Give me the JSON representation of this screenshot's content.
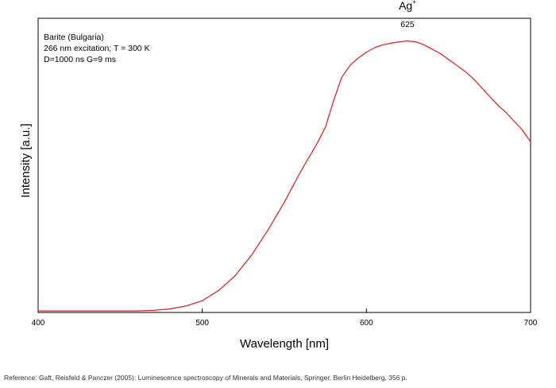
{
  "chart_data": {
    "type": "line",
    "title": "",
    "info_lines": [
      "Barite (Bulgaria)",
      "266 nm excitation; T = 300 K",
      "D=1000 ns G=9 ms"
    ],
    "xlabel": "Wavelength [nm]",
    "ylabel": "Intensity [a.u.]",
    "xlim": [
      400,
      700
    ],
    "ylim": [
      0,
      100
    ],
    "x_ticks": [
      400,
      500,
      600,
      700
    ],
    "y_ticks_visible": false,
    "grid": false,
    "legend": "none",
    "series": [
      {
        "color": "#e8191d",
        "x": [
          400,
          420,
          440,
          460,
          470,
          480,
          490,
          500,
          510,
          520,
          530,
          540,
          550,
          560,
          570,
          575,
          580,
          585,
          590,
          595,
          600,
          605,
          610,
          615,
          620,
          625,
          630,
          635,
          640,
          645,
          650,
          655,
          660,
          665,
          670,
          675,
          680,
          685,
          690,
          695,
          700
        ],
        "y": [
          0.5,
          0.5,
          0.5,
          0.5,
          0.7,
          1.2,
          2.2,
          4.0,
          7.5,
          12.5,
          19.5,
          28.0,
          37.5,
          48.0,
          57.5,
          63.0,
          72.0,
          80.0,
          84.0,
          86.5,
          88.5,
          90.0,
          91.0,
          91.5,
          92.0,
          92.3,
          92.0,
          91.0,
          89.5,
          88.0,
          86.0,
          84.0,
          82.0,
          79.5,
          76.5,
          73.5,
          70.5,
          68.0,
          65.0,
          62.0,
          58.0
        ]
      }
    ],
    "annotations": [
      {
        "label": "Ag",
        "superscript": "+",
        "x": 625,
        "y": 103
      },
      {
        "label": "625",
        "x": 625,
        "y": 97
      }
    ]
  },
  "reference": "Reference: Gaft, Reisfeld & Panczer (2005): Luminescence spectroscopy of Minerals and Materials, Springer, Berlin Heidelberg, 356 p."
}
